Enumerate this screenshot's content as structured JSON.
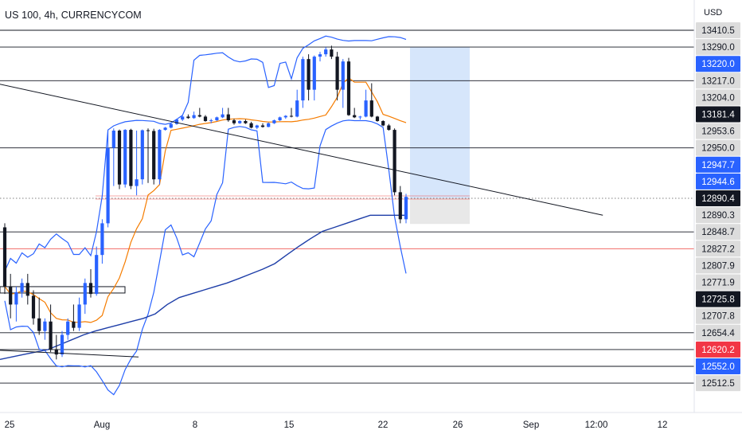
{
  "header": {
    "symbol": "US 100, 4h, CURRENCYCOM",
    "currency": "USD"
  },
  "colors": {
    "up": "#2962ff",
    "down": "#131722",
    "bollinger": "#2962ff",
    "basis": "#f57c00",
    "ma200": "#1e3ea8",
    "level": "#131722",
    "red_level": "#ef5350",
    "tag_gray": "#dcdcdc",
    "tag_dark": "#131722",
    "tag_blue": "#2962ff",
    "tag_red": "#f23645",
    "projection": "#d6e6fb"
  },
  "chart_data": {
    "type": "candlestick",
    "title": "US 100, 4h, CURRENCYCOM",
    "y_unit": "USD",
    "x_ticks": [
      {
        "label": "25",
        "day": 0
      },
      {
        "label": "Aug",
        "day": 7
      },
      {
        "label": "8",
        "day": 14
      },
      {
        "label": "15",
        "day": 21
      },
      {
        "label": "22",
        "day": 28
      },
      {
        "label": "26",
        "day": 32
      },
      {
        "label": "Sep",
        "day": 38
      },
      {
        "label": "12:00",
        "day": 44
      },
      {
        "label": "12",
        "day": 49
      }
    ],
    "price_scale_labels": [
      {
        "text": "13410.5",
        "style": "gray"
      },
      {
        "text": "13290.0",
        "style": "gray"
      },
      {
        "text": "13220.0",
        "style": "blue"
      },
      {
        "text": "13217.0",
        "style": "gray"
      },
      {
        "text": "13204.0",
        "style": "gray"
      },
      {
        "text": "13181.4",
        "style": "dark"
      },
      {
        "text": "12953.6",
        "style": "gray"
      },
      {
        "text": "12950.0",
        "style": "gray"
      },
      {
        "text": "12947.7",
        "style": "blue"
      },
      {
        "text": "12944.6",
        "style": "blue"
      },
      {
        "text": "12890.4",
        "style": "dark"
      },
      {
        "text": "12890.3",
        "style": "gray"
      },
      {
        "text": "12848.7",
        "style": "gray"
      },
      {
        "text": "12827.2",
        "style": "gray"
      },
      {
        "text": "12807.9",
        "style": "gray"
      },
      {
        "text": "12771.9",
        "style": "gray"
      },
      {
        "text": "12725.8",
        "style": "dark"
      },
      {
        "text": "12707.8",
        "style": "gray"
      },
      {
        "text": "12654.4",
        "style": "gray"
      },
      {
        "text": "12620.2",
        "style": "red"
      },
      {
        "text": "12552.0",
        "style": "blue"
      },
      {
        "text": "12512.5",
        "style": "gray"
      }
    ],
    "horizontal_levels": [
      {
        "price": 13410.5,
        "color": "dark"
      },
      {
        "price": 13290.0,
        "color": "dark"
      },
      {
        "price": 13217.0,
        "color": "dark"
      },
      {
        "price": 12950.0,
        "color": "dark"
      },
      {
        "price": 12848.7,
        "color": "dark"
      },
      {
        "price": 12827.2,
        "color": "red"
      },
      {
        "price": 12654.4,
        "color": "dark"
      },
      {
        "price": 12620.2,
        "color": "dark"
      },
      {
        "price": 12552.0,
        "color": "dark"
      },
      {
        "price": 12512.5,
        "color": "dark"
      }
    ],
    "candles": [
      [
        12860,
        12870,
        12740,
        12760
      ],
      [
        12760,
        12790,
        12700,
        12720
      ],
      [
        12720,
        12760,
        12690,
        12745
      ],
      [
        12745,
        12780,
        12730,
        12770
      ],
      [
        12770,
        12790,
        12720,
        12735
      ],
      [
        12735,
        12750,
        12680,
        12700
      ],
      [
        12700,
        12730,
        12650,
        12660
      ],
      [
        12660,
        12700,
        12640,
        12690
      ],
      [
        12690,
        12720,
        12610,
        12620
      ],
      [
        12620,
        12650,
        12580,
        12600
      ],
      [
        12600,
        12660,
        12590,
        12650
      ],
      [
        12650,
        12700,
        12640,
        12690
      ],
      [
        12690,
        12720,
        12660,
        12670
      ],
      [
        12670,
        12730,
        12660,
        12720
      ],
      [
        12720,
        12780,
        12710,
        12770
      ],
      [
        12770,
        12800,
        12730,
        12740
      ],
      [
        12740,
        12830,
        12735,
        12820
      ],
      [
        12820,
        12880,
        12810,
        12870
      ],
      [
        12870,
        12960,
        12860,
        12950
      ],
      [
        12950,
        12990,
        12930,
        12960
      ],
      [
        12960,
        12975,
        12920,
        12935
      ],
      [
        12935,
        12980,
        12925,
        12970
      ],
      [
        12970,
        12985,
        12920,
        12930
      ],
      [
        12930,
        12960,
        12900,
        12945
      ],
      [
        12945,
        12975,
        12935,
        12965
      ],
      [
        12965,
        12990,
        12940,
        12955
      ],
      [
        12955,
        12985,
        12935,
        12945
      ],
      [
        12945,
        12980,
        12935,
        12970
      ],
      [
        12970,
        13010,
        12960,
        13000
      ],
      [
        13000,
        13060,
        12990,
        13050
      ],
      [
        13050,
        13120,
        13040,
        13110
      ],
      [
        13110,
        13160,
        13090,
        13150
      ],
      [
        13150,
        13180,
        13120,
        13130
      ],
      [
        13130,
        13185,
        13120,
        13170
      ],
      [
        13170,
        13190,
        13140,
        13150
      ],
      [
        13150,
        13170,
        13080,
        13090
      ],
      [
        13090,
        13120,
        13060,
        13100
      ],
      [
        13100,
        13150,
        13090,
        13140
      ],
      [
        13140,
        13190,
        13130,
        13180
      ],
      [
        13180,
        13190,
        13080,
        13100
      ],
      [
        13100,
        13120,
        13040,
        13060
      ],
      [
        13060,
        13100,
        13050,
        13090
      ],
      [
        13090,
        13110,
        13050,
        13060
      ],
      [
        13060,
        13080,
        12990,
        13000
      ],
      [
        13000,
        13040,
        12980,
        13030
      ],
      [
        13030,
        13060,
        13000,
        13010
      ],
      [
        13010,
        13070,
        13005,
        13060
      ],
      [
        13060,
        13110,
        13050,
        13100
      ],
      [
        13100,
        13150,
        13090,
        13140
      ],
      [
        13140,
        13170,
        13120,
        13160
      ],
      [
        13160,
        13190,
        13140,
        13150
      ],
      [
        13150,
        13210,
        13140,
        13200
      ],
      [
        13200,
        13250,
        13190,
        13240
      ],
      [
        13240,
        13260,
        13200,
        13210
      ],
      [
        13210,
        13255,
        13200,
        13250
      ],
      [
        13250,
        13270,
        13230,
        13260
      ],
      [
        13260,
        13290,
        13250,
        13280
      ],
      [
        13280,
        13300,
        13240,
        13250
      ],
      [
        13250,
        13270,
        13200,
        13210
      ],
      [
        13210,
        13240,
        13190,
        13230
      ],
      [
        13230,
        13245,
        13160,
        13170
      ],
      [
        13170,
        13190,
        13130,
        13140
      ],
      [
        13140,
        13160,
        13110,
        13150
      ],
      [
        13150,
        13210,
        13140,
        13200
      ],
      [
        13200,
        13215,
        13140,
        13150
      ],
      [
        13150,
        13160,
        13080,
        13090
      ],
      [
        13090,
        13100,
        13020,
        13030
      ],
      [
        13030,
        13050,
        12960,
        12970
      ],
      [
        12970,
        12990,
        12900,
        12910
      ],
      [
        12910,
        12930,
        12870,
        12880
      ],
      [
        12880,
        12905,
        12870,
        12895
      ]
    ],
    "ma200": [
      12580,
      12590,
      12600,
      12610,
      12620,
      12630,
      12640,
      12650,
      12660,
      12670,
      12680,
      12690,
      12700,
      12710,
      12720,
      12730,
      12740,
      12750,
      12760,
      12770,
      12780,
      12790,
      12800,
      12810,
      12820,
      12830,
      12840,
      12850,
      12860,
      12870,
      12880,
      12890,
      12890,
      12890,
      12890
    ],
    "projection_box": {
      "price_top": 13290.0,
      "price_bottom": 12848.7,
      "price_mid": 12890.4,
      "label": ""
    },
    "trendlines": [
      {
        "p1": [
          -2,
          13217.0
        ],
        "p2": [
          46,
          12890.0
        ]
      },
      {
        "p1": [
          -2,
          12620.0
        ],
        "p2": [
          10,
          12590.0
        ]
      }
    ]
  }
}
